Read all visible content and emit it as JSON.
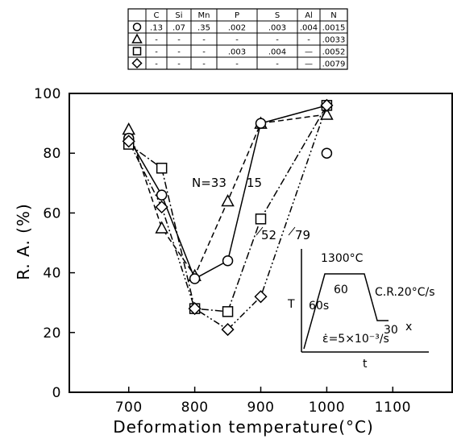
{
  "composition_table": {
    "headers": [
      "",
      "C",
      "Si",
      "Mn",
      "P",
      "S",
      "Al",
      "N"
    ],
    "rows": [
      {
        "symbol": "circle",
        "cells": [
          ".13",
          ".07",
          ".35",
          ".002",
          ".003",
          ".004",
          ".0015"
        ]
      },
      {
        "symbol": "triangle",
        "cells": [
          "-",
          "-",
          "-",
          "-",
          "-",
          "-",
          ".0033"
        ]
      },
      {
        "symbol": "square",
        "cells": [
          "-",
          "-",
          "-",
          ".003",
          ".004",
          "—",
          ".0052"
        ]
      },
      {
        "symbol": "diamond",
        "cells": [
          "-",
          "-",
          "-",
          "-",
          "-",
          "—",
          ".0079"
        ]
      }
    ]
  },
  "chart_data": {
    "type": "line",
    "title": "",
    "xlabel": "Deformation temperature(°C)",
    "ylabel": "R. A. (%)",
    "xlim": [
      610,
      1190
    ],
    "ylim": [
      0,
      100
    ],
    "x_ticks": [
      700,
      800,
      900,
      1000,
      1100
    ],
    "y_ticks": [
      0,
      20,
      40,
      60,
      80,
      100
    ],
    "series": [
      {
        "name": "N=33",
        "marker": "triangle",
        "line": "dashed",
        "color": "#000000",
        "points": [
          [
            700,
            88
          ],
          [
            750,
            55
          ],
          [
            800,
            39
          ],
          [
            850,
            64
          ],
          [
            900,
            90
          ],
          [
            1000,
            93
          ]
        ]
      },
      {
        "name": "15",
        "marker": "circle",
        "line": "solid",
        "color": "#000000",
        "points": [
          [
            700,
            85
          ],
          [
            750,
            66
          ],
          [
            800,
            38
          ],
          [
            850,
            44
          ],
          [
            900,
            90
          ],
          [
            1000,
            96
          ]
        ],
        "extra_points": [
          [
            1000,
            80
          ]
        ]
      },
      {
        "name": "52",
        "marker": "square",
        "line": "dashdot",
        "color": "#000000",
        "points": [
          [
            700,
            83
          ],
          [
            750,
            75
          ],
          [
            800,
            28
          ],
          [
            850,
            27
          ],
          [
            900,
            58
          ],
          [
            1000,
            96
          ]
        ]
      },
      {
        "name": "79",
        "marker": "diamond",
        "line": "dashdotdot",
        "color": "#000000",
        "points": [
          [
            700,
            84
          ],
          [
            750,
            62
          ],
          [
            800,
            28
          ],
          [
            850,
            21
          ],
          [
            900,
            32
          ],
          [
            1000,
            96
          ]
        ]
      }
    ],
    "annotations": [
      "N=33",
      "15",
      "52",
      "79"
    ],
    "inset": {
      "peak_temp": "1300°C",
      "ramp_time": "60s",
      "hold_time": "60",
      "cooling_rate": "C.R.20°C/s",
      "end_temp": "30",
      "end_mark": "x",
      "strain_rate": "ε̇=5×10⁻³/s",
      "x_axis": "t",
      "y_axis": "T"
    }
  }
}
